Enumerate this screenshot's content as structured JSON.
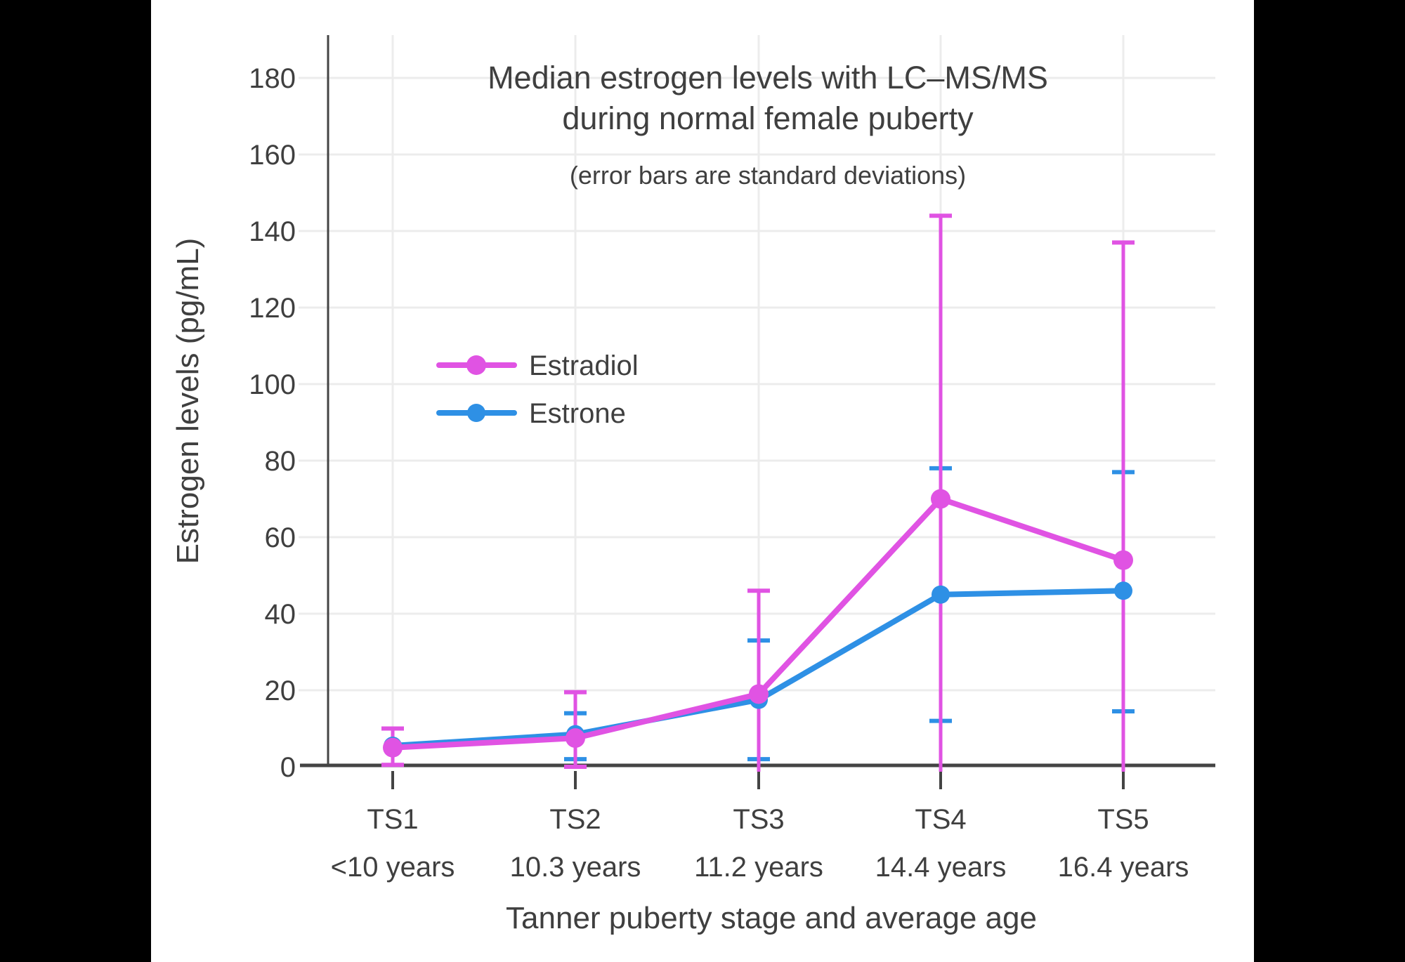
{
  "theme": {
    "frame_color": "#000000",
    "background_color": "#ffffff",
    "text_color": "#3f3f3f",
    "grid_color": "#ececec",
    "axis_color": "#444444"
  },
  "chart_data": {
    "type": "line",
    "title": "Median estrogen levels with LC–MS/MS during normal female puberty",
    "title_lines": [
      "Median estrogen levels with LC–MS/MS",
      "during normal female puberty"
    ],
    "subtitle": "(error bars are standard deviations)",
    "xlabel": "Tanner puberty stage and average age",
    "ylabel": "Estrogen levels (pg/mL)",
    "categories": [
      "TS1",
      "TS2",
      "TS3",
      "TS4",
      "TS5"
    ],
    "category_sublabels": [
      "<10 years",
      "10.3 years",
      "11.2 years",
      "14.4 years",
      "16.4 years"
    ],
    "y_ticks": [
      0,
      20,
      40,
      60,
      80,
      100,
      120,
      140,
      160,
      180
    ],
    "ylim": [
      0,
      190
    ],
    "grid": true,
    "legend_position": "inside-upper-left",
    "error_bar_note": "error bars are standard deviations; null error_low means the bar extends below 0 and is clipped at the axis",
    "series": [
      {
        "name": "Estradiol",
        "color": "#E053E3",
        "values": [
          5,
          7.5,
          19,
          70,
          54
        ],
        "error_high": [
          10,
          19.5,
          46,
          144,
          137
        ],
        "error_low": [
          0.5,
          0,
          null,
          null,
          null
        ]
      },
      {
        "name": "Estrone",
        "color": "#2E90E5",
        "values": [
          5.5,
          8.5,
          17.5,
          45,
          46
        ],
        "error_high": [
          null,
          14,
          33,
          78,
          77
        ],
        "error_low": [
          null,
          2,
          2,
          12,
          14.5
        ]
      }
    ]
  }
}
